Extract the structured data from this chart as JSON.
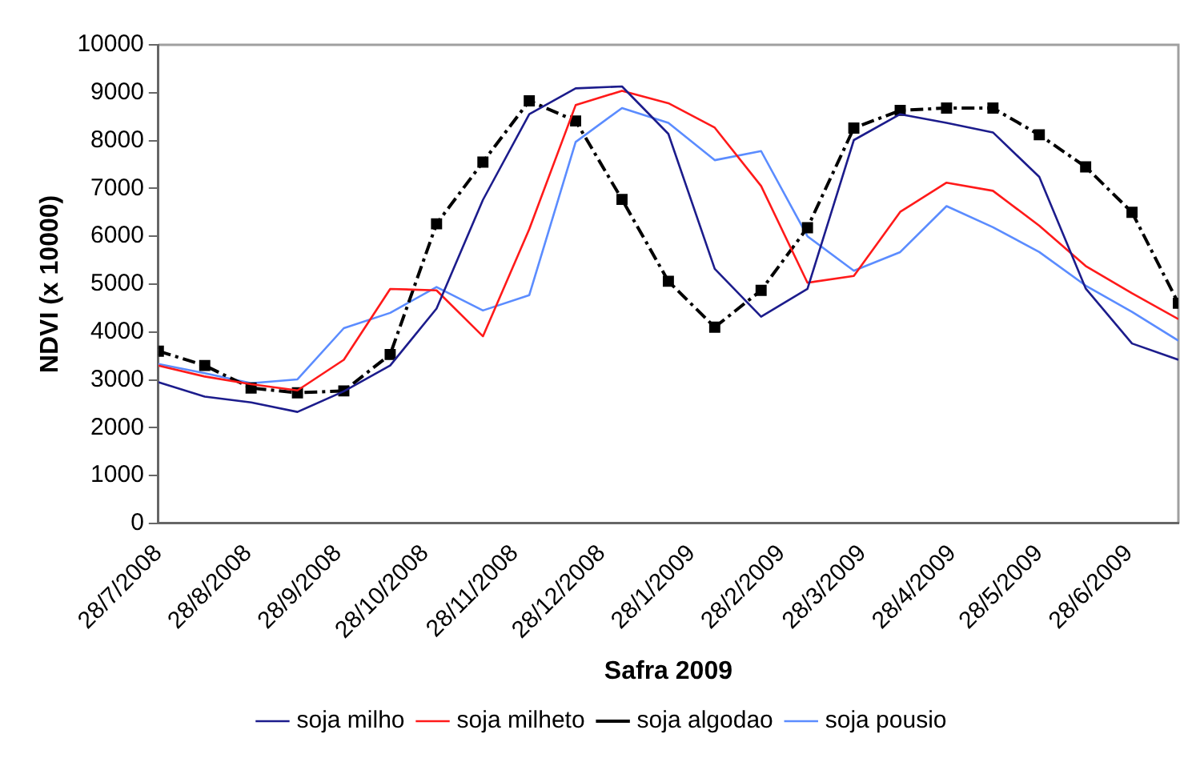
{
  "chart_data": {
    "type": "line",
    "xlabel": "Safra 2009",
    "ylabel": "NDVI (x 10000)",
    "x": [
      "2008-07-28",
      "2008-08-13",
      "2008-08-29",
      "2008-09-14",
      "2008-09-30",
      "2008-10-16",
      "2008-11-01",
      "2008-11-17",
      "2008-12-03",
      "2008-12-19",
      "2009-01-04",
      "2009-01-20",
      "2009-02-05",
      "2009-02-21",
      "2009-03-09",
      "2009-03-25",
      "2009-04-10",
      "2009-04-26",
      "2009-05-12",
      "2009-05-28",
      "2009-06-13",
      "2009-06-29",
      "2009-07-15"
    ],
    "xlim": [
      "2008-07-28",
      "2009-07-15"
    ],
    "xticks": [
      {
        "value": "2008-07-28",
        "label": "28/7/2008"
      },
      {
        "value": "2008-08-28",
        "label": "28/8/2008"
      },
      {
        "value": "2008-09-28",
        "label": "28/9/2008"
      },
      {
        "value": "2008-10-28",
        "label": "28/10/2008"
      },
      {
        "value": "2008-11-28",
        "label": "28/11/2008"
      },
      {
        "value": "2008-12-28",
        "label": "28/12/2008"
      },
      {
        "value": "2009-01-28",
        "label": "28/1/2009"
      },
      {
        "value": "2009-02-28",
        "label": "28/2/2009"
      },
      {
        "value": "2009-03-28",
        "label": "28/3/2009"
      },
      {
        "value": "2009-04-28",
        "label": "28/4/2009"
      },
      {
        "value": "2009-05-28",
        "label": "28/5/2009"
      },
      {
        "value": "2009-06-28",
        "label": "28/6/2009"
      }
    ],
    "ylim": [
      0,
      10000
    ],
    "yticks": [
      0,
      1000,
      2000,
      3000,
      4000,
      5000,
      6000,
      7000,
      8000,
      9000,
      10000
    ],
    "grid": false,
    "legend": "bottom",
    "marker": "none",
    "line_style": "solid",
    "series": [
      {
        "name": "soja milho",
        "color": "#1c1c8c",
        "values": [
          2950,
          2650,
          2530,
          2330,
          2760,
          3300,
          4490,
          6760,
          8550,
          9090,
          9130,
          8140,
          5320,
          4320,
          4900,
          8010,
          8550,
          8370,
          8170,
          7240,
          4910,
          3760,
          3420
        ]
      },
      {
        "name": "soja milheto",
        "color": "#ff1a1a",
        "values": [
          3300,
          3070,
          2910,
          2780,
          3420,
          4900,
          4870,
          3910,
          6150,
          8740,
          9040,
          8780,
          8270,
          7050,
          5030,
          5170,
          6510,
          7120,
          6950,
          6220,
          5380,
          4810,
          4270
        ]
      },
      {
        "name": "soja algodao",
        "color": "#000000",
        "line_style": "dashed",
        "marker": "square",
        "values": [
          3600,
          3300,
          2830,
          2730,
          2770,
          3530,
          6260,
          7550,
          8830,
          8410,
          6770,
          5060,
          4100,
          4870,
          6180,
          8260,
          8630,
          8680,
          8680,
          8120,
          7450,
          6500,
          4600
        ]
      },
      {
        "name": "soja pousio",
        "color": "#5b8cff",
        "values": [
          3330,
          3140,
          2930,
          3010,
          4080,
          4400,
          4940,
          4450,
          4770,
          7970,
          8680,
          8370,
          7590,
          7780,
          6000,
          5280,
          5670,
          6630,
          6190,
          5670,
          4970,
          4420,
          3820
        ]
      }
    ]
  }
}
